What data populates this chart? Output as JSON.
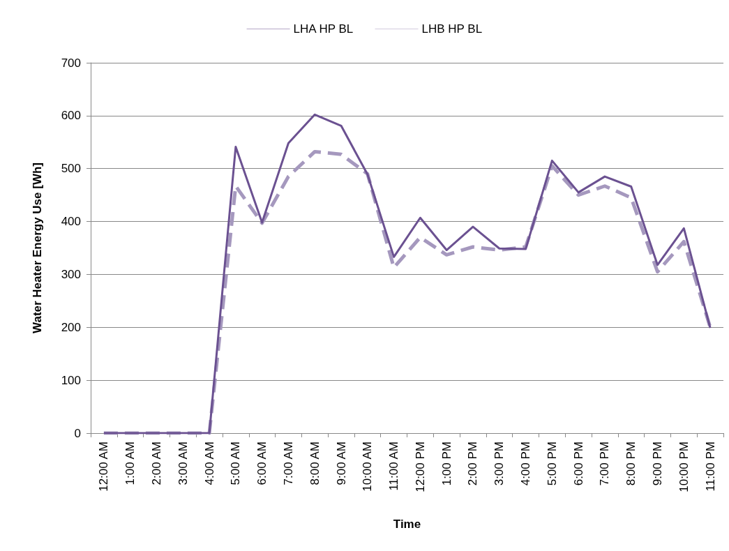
{
  "chart_data": {
    "type": "line",
    "xlabel": "Time",
    "ylabel": "Water Heater Energy Use [Wh]",
    "categories": [
      "12:00 AM",
      "1:00 AM",
      "2:00 AM",
      "3:00 AM",
      "4:00 AM",
      "5:00 AM",
      "6:00 AM",
      "7:00 AM",
      "8:00 AM",
      "9:00 AM",
      "10:00 AM",
      "11:00 AM",
      "12:00 PM",
      "1:00 PM",
      "2:00 PM",
      "3:00 PM",
      "4:00 PM",
      "5:00 PM",
      "6:00 PM",
      "7:00 PM",
      "8:00 PM",
      "9:00 PM",
      "10:00 PM",
      "11:00 PM"
    ],
    "series": [
      {
        "name": "LHA HP BL",
        "color": "#6b5191",
        "line_style": "solid",
        "values": [
          0,
          0,
          0,
          0,
          0,
          541,
          398,
          548,
          602,
          581,
          489,
          333,
          407,
          346,
          390,
          349,
          348,
          515,
          455,
          485,
          466,
          318,
          387,
          199
        ]
      },
      {
        "name": "LHB HP BL",
        "color": "#a598be",
        "line_style": "dashed",
        "values": [
          0,
          0,
          0,
          0,
          0,
          467,
          397,
          485,
          532,
          527,
          490,
          313,
          370,
          337,
          352,
          346,
          352,
          505,
          450,
          467,
          445,
          305,
          362,
          200
        ]
      }
    ],
    "ylim": [
      0,
      700
    ],
    "yticks": [
      0,
      100,
      200,
      300,
      400,
      500,
      600,
      700
    ],
    "grid": "y",
    "legend": "top",
    "marker": "none"
  }
}
